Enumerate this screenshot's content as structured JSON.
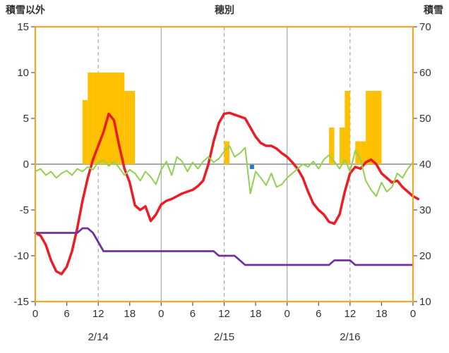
{
  "header": {
    "left_label": "積雪以外",
    "title": "穂別",
    "right_label": "積雪"
  },
  "colors": {
    "frame": "#F5A623",
    "grid": "#A8A8A8",
    "zero_line": "#8C8C8C",
    "tick": "#555555",
    "text": "#333333",
    "bar": "#FFC000",
    "red": "#ED1C24",
    "green": "#92D050",
    "purple": "#7030A0",
    "blue_marker": "#2E75B6"
  },
  "chart_data": {
    "type": "combo",
    "title": "穂別",
    "x_axis": {
      "unit": "hour",
      "range": [
        0,
        72
      ],
      "tick_hours": [
        0,
        6,
        12,
        18,
        24,
        30,
        36,
        42,
        48,
        54,
        60,
        66,
        72
      ],
      "tick_labels": [
        "0",
        "6",
        "12",
        "18",
        "0",
        "6",
        "12",
        "18",
        "0",
        "6",
        "12",
        "18",
        "0"
      ],
      "day_labels": [
        {
          "hour": 12,
          "label": "2/14"
        },
        {
          "hour": 36,
          "label": "2/15"
        },
        {
          "hour": 60,
          "label": "2/16"
        }
      ],
      "solid_grid_hours": [
        24,
        48
      ],
      "dashed_grid_hours": [
        12,
        36,
        60
      ]
    },
    "left_axis": {
      "label": "積雪以外",
      "range": [
        -15,
        15
      ],
      "ticks": [
        15,
        10,
        5,
        0,
        -5,
        -10,
        -15
      ]
    },
    "right_axis": {
      "label": "積雪",
      "range": [
        10,
        70
      ],
      "ticks": [
        70,
        60,
        50,
        40,
        30,
        20,
        10
      ]
    },
    "series": [
      {
        "name": "precip-bars",
        "type": "bar",
        "axis": "left",
        "color": "#FFC000",
        "bars": [
          [
            9,
            7
          ],
          [
            10,
            10
          ],
          [
            11,
            10
          ],
          [
            12,
            10
          ],
          [
            13,
            10
          ],
          [
            14,
            10
          ],
          [
            15,
            10
          ],
          [
            16,
            10
          ],
          [
            17,
            8
          ],
          [
            18,
            8
          ],
          [
            36,
            2.5
          ],
          [
            56,
            4
          ],
          [
            58,
            4
          ],
          [
            59,
            8
          ],
          [
            61,
            2.5
          ],
          [
            62,
            2.5
          ],
          [
            63,
            8
          ],
          [
            64,
            8
          ],
          [
            65,
            8
          ]
        ]
      },
      {
        "name": "red-line",
        "type": "line",
        "axis": "left",
        "color": "#ED1C24",
        "width": 3.5,
        "start_hour": 0,
        "step": 1,
        "values": [
          -7.5,
          -7.8,
          -8.8,
          -10.5,
          -11.7,
          -12,
          -11.2,
          -9.5,
          -7,
          -4,
          -1.5,
          0.5,
          2,
          3.5,
          5.5,
          4.8,
          2,
          -0.5,
          -2,
          -4.5,
          -5,
          -4.6,
          -6.2,
          -5.5,
          -4.4,
          -4,
          -3.8,
          -3.5,
          -3.2,
          -3,
          -2.8,
          -2.4,
          -1.8,
          0,
          2.5,
          4.5,
          5.5,
          5.6,
          5.4,
          5.2,
          5,
          4,
          3,
          2.3,
          2,
          2,
          1.7,
          1.2,
          0.8,
          0.2,
          -0.5,
          -1.5,
          -3,
          -4.3,
          -5,
          -5.5,
          -6.3,
          -6.5,
          -5.5,
          -3,
          -1,
          -0.3,
          -0.5,
          0.2,
          0.5,
          0,
          -1,
          -1.5,
          -2,
          -1.8,
          -2.5,
          -3,
          -3.5,
          -3.8
        ]
      },
      {
        "name": "green-line",
        "type": "line",
        "axis": "left",
        "color": "#92D050",
        "width": 2,
        "start_hour": 0,
        "step": 1,
        "values": [
          -0.8,
          -0.5,
          -1.2,
          -0.8,
          -1.5,
          -1,
          -0.7,
          -1.2,
          -0.5,
          -0.8,
          -0.3,
          -0.6,
          0.2,
          0.4,
          -0.2,
          0.3,
          -0.4,
          -1.2,
          -0.6,
          -1,
          -1.8,
          -0.8,
          -1.4,
          -2.2,
          -0.6,
          0.3,
          -1.2,
          0.8,
          0.3,
          -0.8,
          0.2,
          -0.5,
          0.3,
          0.8,
          0.2,
          0.6,
          1.4,
          2,
          0.8,
          1.2,
          1.8,
          -3.2,
          -0.8,
          -1.5,
          -2.3,
          -1,
          -2.5,
          -2.2,
          -1.5,
          -1,
          -0.5,
          0,
          -0.3,
          0.3,
          -0.5,
          0.5,
          1,
          0.3,
          -0.5,
          0.5,
          -0.8,
          1.5,
          0.5,
          -1.8,
          -2.8,
          -3.5,
          -2,
          -3,
          -2.5,
          -1,
          -1.5,
          -0.5,
          0.2
        ]
      },
      {
        "name": "purple-line",
        "type": "line",
        "axis": "right",
        "color": "#7030A0",
        "width": 2.8,
        "start_hour": 0,
        "step": 1,
        "values": [
          25,
          25,
          25,
          25,
          25,
          25,
          25,
          25,
          25,
          26,
          26,
          25,
          23,
          21,
          21,
          21,
          21,
          21,
          21,
          21,
          21,
          21,
          21,
          21,
          21,
          21,
          21,
          21,
          21,
          21,
          21,
          21,
          21,
          21,
          21,
          20,
          20,
          20,
          20,
          19,
          18,
          18,
          18,
          18,
          18,
          18,
          18,
          18,
          18,
          18,
          18,
          18,
          18,
          18,
          18,
          18,
          18,
          19,
          19,
          19,
          19,
          18,
          18,
          18,
          18,
          18,
          18,
          18,
          18,
          18,
          18,
          18,
          18
        ]
      },
      {
        "name": "blue-marker",
        "type": "point",
        "axis": "left",
        "color": "#2E75B6",
        "hour": 41.3,
        "value": -0.3,
        "size": 6
      }
    ]
  }
}
